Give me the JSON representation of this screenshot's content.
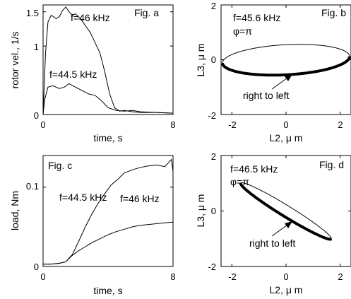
{
  "chart_data": [
    {
      "type": "line",
      "panel_label": "Fig. a",
      "xlabel": "time, s",
      "ylabel": "rotor vel., 1/s",
      "xlim": [
        0,
        8
      ],
      "ylim": [
        0,
        1.6
      ],
      "x_ticks": [
        "0",
        "8"
      ],
      "y_ticks": [
        "0",
        "1",
        "1.5"
      ],
      "series": [
        {
          "name": "f=46 kHz",
          "x": [
            0,
            0.15,
            0.3,
            0.5,
            0.8,
            1.0,
            1.2,
            1.4,
            1.6,
            1.8,
            2.0,
            2.3,
            2.6,
            2.9,
            3.2,
            3.5,
            3.8,
            4.1,
            4.4,
            4.7,
            5.0,
            5.5,
            6.0,
            7.0,
            8.0
          ],
          "y": [
            0,
            0.9,
            1.35,
            1.45,
            1.4,
            1.43,
            1.52,
            1.57,
            1.5,
            1.45,
            1.47,
            1.4,
            1.3,
            1.2,
            1.05,
            0.9,
            0.62,
            0.3,
            0.1,
            0.05,
            0.06,
            0.04,
            0.03,
            0.03,
            0.02
          ]
        },
        {
          "name": "f=44.5 kHz",
          "x": [
            0,
            0.1,
            0.3,
            0.6,
            1.0,
            1.3,
            1.6,
            2.0,
            2.4,
            2.8,
            3.2,
            3.6,
            4.0,
            4.5,
            5.0,
            5.5,
            6.0,
            7.0,
            8.0
          ],
          "y": [
            0,
            0.22,
            0.4,
            0.42,
            0.38,
            0.4,
            0.45,
            0.4,
            0.35,
            0.3,
            0.28,
            0.2,
            0.1,
            0.06,
            0.05,
            0.06,
            0.04,
            0.03,
            0.02
          ]
        }
      ],
      "annotations": [
        "f=46 kHz",
        "f=44.5 kHz"
      ]
    },
    {
      "type": "line",
      "panel_label": "Fig. b",
      "title": "f=45.6 kHz",
      "subtitle": "φ=π",
      "xlabel": "L2, μ m",
      "ylabel": "L3, μ m",
      "xlim": [
        -2.4,
        2.4
      ],
      "ylim": [
        -2,
        2
      ],
      "x_ticks": [
        "-2",
        "0",
        "2"
      ],
      "y_ticks": [
        "-2",
        "0",
        "2"
      ],
      "ellipse": {
        "center": [
          0,
          0
        ],
        "semi_axes": [
          2.35,
          0.55
        ],
        "tilt_deg": 3
      },
      "annotation": "right to left"
    },
    {
      "type": "line",
      "panel_label": "Fig. c",
      "xlabel": "time, s",
      "ylabel": "load, Nm",
      "xlim": [
        0,
        8
      ],
      "ylim": [
        0,
        0.14
      ],
      "x_ticks": [
        "0",
        "8"
      ],
      "y_ticks": [
        "0",
        "0.1"
      ],
      "series": [
        {
          "name": "f=44.5 kHz",
          "x": [
            0,
            0.5,
            1.0,
            1.4,
            1.8,
            2.2,
            2.6,
            3.0,
            3.4,
            3.8,
            4.2,
            4.6,
            5.0,
            5.5,
            6.0,
            6.5,
            7.0,
            7.5,
            7.9,
            8.0
          ],
          "y": [
            0.003,
            0.003,
            0.004,
            0.006,
            0.015,
            0.032,
            0.05,
            0.066,
            0.08,
            0.092,
            0.103,
            0.11,
            0.118,
            0.122,
            0.125,
            0.127,
            0.128,
            0.126,
            0.135,
            0.12
          ]
        },
        {
          "name": "f=46 kHz",
          "x": [
            0,
            0.5,
            1.0,
            1.4,
            1.8,
            2.2,
            2.6,
            3.0,
            3.5,
            4.0,
            4.5,
            5.0,
            5.5,
            6.0,
            6.5,
            7.0,
            7.5,
            8.0
          ],
          "y": [
            0.003,
            0.003,
            0.004,
            0.006,
            0.014,
            0.02,
            0.025,
            0.03,
            0.035,
            0.04,
            0.044,
            0.047,
            0.05,
            0.052,
            0.053,
            0.054,
            0.055,
            0.056
          ]
        }
      ],
      "annotations": [
        "f=44.5 kHz",
        "f=46 kHz"
      ]
    },
    {
      "type": "line",
      "panel_label": "Fig. d",
      "title": "f=46.5 kHz",
      "subtitle": "φ=π",
      "xlabel": "L2, μ m",
      "ylabel": "L3, μ m",
      "xlim": [
        -2.4,
        2.4
      ],
      "ylim": [
        -2,
        2
      ],
      "x_ticks": [
        "-2",
        "0",
        "2"
      ],
      "y_ticks": [
        "-2",
        "0",
        "2"
      ],
      "ellipse": {
        "center": [
          0,
          0
        ],
        "semi_axes": [
          1.95,
          0.2
        ],
        "tilt_deg": -31
      },
      "annotation": "right to left"
    }
  ]
}
